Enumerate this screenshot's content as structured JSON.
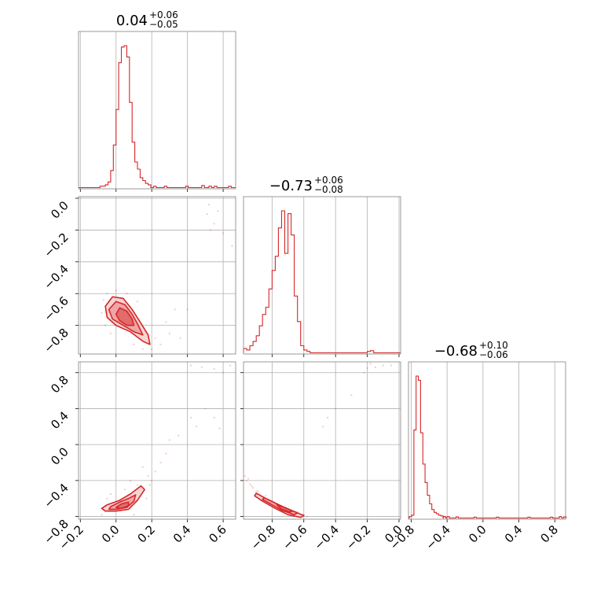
{
  "chart_data": {
    "type": "corner",
    "color": "#d62728",
    "titles": [
      {
        "value": "0.04",
        "plus": "+0.06",
        "minus": "−0.05"
      },
      {
        "value": "−0.73",
        "plus": "+0.06",
        "minus": "−0.08"
      },
      {
        "value": "−0.68",
        "plus": "+0.10",
        "minus": "−0.06"
      }
    ],
    "ranges": [
      [
        -0.21,
        0.67
      ],
      [
        -0.98,
        0.01
      ],
      [
        -0.83,
        0.92
      ]
    ],
    "tick_values": {
      "p0": [
        -0.2,
        0.0,
        0.2,
        0.4,
        0.6
      ],
      "p1": [
        -0.8,
        -0.6,
        -0.4,
        -0.2,
        0.0
      ],
      "p2": [
        -0.8,
        -0.4,
        0.0,
        0.4,
        0.8
      ]
    },
    "tick_labels": {
      "p0": [
        "−0.2",
        "0.0",
        "0.2",
        "0.4",
        "0.6"
      ],
      "p1": [
        "−0.8",
        "−0.6",
        "−0.4",
        "−0.2",
        "0.0"
      ],
      "p2": [
        "−0.8",
        "−0.4",
        "0.0",
        "0.4",
        "0.8"
      ]
    },
    "hist": [
      {
        "param": "p0",
        "bin_width": 0.015,
        "bins": [
          [
            -0.09,
            0.01
          ],
          [
            -0.075,
            0.01
          ],
          [
            -0.06,
            0.02
          ],
          [
            -0.045,
            0.04
          ],
          [
            -0.03,
            0.12
          ],
          [
            -0.015,
            0.3
          ],
          [
            0.0,
            0.55
          ],
          [
            0.015,
            0.88
          ],
          [
            0.03,
            0.99
          ],
          [
            0.045,
            1.0
          ],
          [
            0.06,
            0.92
          ],
          [
            0.075,
            0.6
          ],
          [
            0.09,
            0.32
          ],
          [
            0.105,
            0.18
          ],
          [
            0.12,
            0.13
          ],
          [
            0.135,
            0.07
          ],
          [
            0.15,
            0.05
          ],
          [
            0.165,
            0.03
          ],
          [
            0.18,
            0.02
          ],
          [
            0.21,
            0.01
          ],
          [
            0.27,
            0.01
          ],
          [
            0.39,
            0.01
          ],
          [
            0.48,
            0.015
          ],
          [
            0.52,
            0.01
          ],
          [
            0.55,
            0.01
          ],
          [
            0.63,
            0.01
          ]
        ]
      },
      {
        "param": "p1",
        "bin_width": 0.02,
        "bins": [
          [
            -0.98,
            0.03
          ],
          [
            -0.96,
            0.02
          ],
          [
            -0.94,
            0.05
          ],
          [
            -0.92,
            0.08
          ],
          [
            -0.9,
            0.12
          ],
          [
            -0.88,
            0.19
          ],
          [
            -0.86,
            0.27
          ],
          [
            -0.84,
            0.32
          ],
          [
            -0.82,
            0.45
          ],
          [
            -0.8,
            0.58
          ],
          [
            -0.78,
            0.68
          ],
          [
            -0.76,
            0.88
          ],
          [
            -0.74,
            1.0
          ],
          [
            -0.72,
            0.7
          ],
          [
            -0.7,
            0.98
          ],
          [
            -0.68,
            0.83
          ],
          [
            -0.66,
            0.4
          ],
          [
            -0.64,
            0.22
          ],
          [
            -0.62,
            0.05
          ],
          [
            -0.6,
            0.02
          ],
          [
            -0.58,
            0.01
          ],
          [
            -0.2,
            0.01
          ],
          [
            -0.18,
            0.015
          ]
        ]
      },
      {
        "param": "p2",
        "bin_width": 0.025,
        "bins": [
          [
            -0.82,
            0.01
          ],
          [
            -0.795,
            0.02
          ],
          [
            -0.77,
            0.62
          ],
          [
            -0.745,
            1.0
          ],
          [
            -0.72,
            0.97
          ],
          [
            -0.695,
            0.6
          ],
          [
            -0.67,
            0.38
          ],
          [
            -0.645,
            0.25
          ],
          [
            -0.62,
            0.16
          ],
          [
            -0.595,
            0.1
          ],
          [
            -0.57,
            0.06
          ],
          [
            -0.545,
            0.04
          ],
          [
            -0.52,
            0.03
          ],
          [
            -0.495,
            0.02
          ],
          [
            -0.47,
            0.015
          ],
          [
            -0.44,
            0.01
          ],
          [
            -0.4,
            0.01
          ],
          [
            -0.3,
            0.008
          ],
          [
            -0.1,
            0.006
          ],
          [
            0.15,
            0.006
          ],
          [
            0.5,
            0.006
          ],
          [
            0.75,
            0.006
          ],
          [
            0.85,
            0.01
          ],
          [
            0.9,
            0.008
          ]
        ]
      }
    ],
    "contours": {
      "p1_vs_p0": [
        [
          [
            -0.02,
            -0.62
          ],
          [
            0.04,
            -0.63
          ],
          [
            0.09,
            -0.7
          ],
          [
            0.13,
            -0.77
          ],
          [
            0.18,
            -0.86
          ],
          [
            0.19,
            -0.92
          ],
          [
            0.15,
            -0.9
          ],
          [
            0.08,
            -0.84
          ],
          [
            0.0,
            -0.8
          ],
          [
            -0.05,
            -0.75
          ],
          [
            -0.06,
            -0.68
          ]
        ],
        [
          [
            0.0,
            -0.65
          ],
          [
            0.05,
            -0.67
          ],
          [
            0.09,
            -0.73
          ],
          [
            0.12,
            -0.79
          ],
          [
            0.15,
            -0.86
          ],
          [
            0.1,
            -0.84
          ],
          [
            0.04,
            -0.8
          ],
          [
            -0.02,
            -0.76
          ],
          [
            -0.04,
            -0.7
          ]
        ],
        [
          [
            0.02,
            -0.69
          ],
          [
            0.06,
            -0.71
          ],
          [
            0.09,
            -0.76
          ],
          [
            0.1,
            -0.8
          ],
          [
            0.06,
            -0.8
          ],
          [
            0.02,
            -0.77
          ],
          [
            0.0,
            -0.73
          ]
        ]
      ],
      "p2_vs_p0": [
        [
          [
            -0.05,
            -0.67
          ],
          [
            0.02,
            -0.62
          ],
          [
            0.08,
            -0.55
          ],
          [
            0.14,
            -0.46
          ],
          [
            0.16,
            -0.5
          ],
          [
            0.12,
            -0.62
          ],
          [
            0.07,
            -0.72
          ],
          [
            0.0,
            -0.74
          ],
          [
            -0.06,
            -0.74
          ],
          [
            -0.08,
            -0.71
          ]
        ],
        [
          [
            -0.03,
            -0.69
          ],
          [
            0.02,
            -0.64
          ],
          [
            0.07,
            -0.6
          ],
          [
            0.11,
            -0.56
          ],
          [
            0.1,
            -0.63
          ],
          [
            0.06,
            -0.7
          ],
          [
            0.0,
            -0.72
          ],
          [
            -0.04,
            -0.72
          ]
        ],
        [
          [
            0.0,
            -0.7
          ],
          [
            0.03,
            -0.66
          ],
          [
            0.07,
            -0.64
          ],
          [
            0.07,
            -0.68
          ],
          [
            0.03,
            -0.71
          ]
        ]
      ],
      "p2_vs_p1": [
        [
          [
            -0.9,
            -0.54
          ],
          [
            -0.84,
            -0.6
          ],
          [
            -0.76,
            -0.67
          ],
          [
            -0.68,
            -0.73
          ],
          [
            -0.6,
            -0.79
          ],
          [
            -0.62,
            -0.81
          ],
          [
            -0.7,
            -0.78
          ],
          [
            -0.78,
            -0.71
          ],
          [
            -0.86,
            -0.63
          ],
          [
            -0.91,
            -0.57
          ]
        ],
        [
          [
            -0.85,
            -0.59
          ],
          [
            -0.78,
            -0.65
          ],
          [
            -0.71,
            -0.71
          ],
          [
            -0.64,
            -0.76
          ],
          [
            -0.66,
            -0.78
          ],
          [
            -0.74,
            -0.73
          ],
          [
            -0.81,
            -0.66
          ],
          [
            -0.86,
            -0.61
          ]
        ],
        [
          [
            -0.77,
            -0.67
          ],
          [
            -0.72,
            -0.7
          ],
          [
            -0.67,
            -0.74
          ],
          [
            -0.69,
            -0.75
          ],
          [
            -0.74,
            -0.72
          ]
        ]
      ]
    },
    "samples": {
      "p1_vs_p0": [
        [
          0.51,
          -0.1
        ],
        [
          0.53,
          -0.2
        ],
        [
          0.55,
          -0.16
        ],
        [
          0.57,
          -0.08
        ],
        [
          0.52,
          -0.04
        ],
        [
          0.6,
          -0.22
        ],
        [
          0.65,
          -0.3
        ],
        [
          0.4,
          -0.7
        ],
        [
          0.3,
          -0.85
        ],
        [
          0.25,
          -0.92
        ],
        [
          0.28,
          -0.78
        ],
        [
          0.33,
          -0.7
        ],
        [
          0.36,
          -0.88
        ],
        [
          -0.05,
          -0.6
        ],
        [
          -0.08,
          -0.72
        ],
        [
          -0.06,
          -0.8
        ],
        [
          0.1,
          -0.92
        ],
        [
          0.2,
          -0.95
        ],
        [
          0.15,
          -0.95
        ],
        [
          0.0,
          -0.58
        ],
        [
          0.06,
          -0.6
        ],
        [
          -0.03,
          -0.85
        ],
        [
          0.22,
          -0.88
        ],
        [
          0.12,
          -0.65
        ],
        [
          -0.07,
          -0.64
        ]
      ],
      "p2_vs_p0": [
        [
          0.42,
          0.88
        ],
        [
          0.48,
          0.86
        ],
        [
          0.55,
          0.84
        ],
        [
          0.6,
          0.8
        ],
        [
          0.64,
          0.88
        ],
        [
          0.5,
          0.4
        ],
        [
          0.55,
          0.3
        ],
        [
          0.58,
          0.18
        ],
        [
          0.45,
          0.2
        ],
        [
          0.35,
          0.1
        ],
        [
          0.3,
          0.05
        ],
        [
          0.42,
          0.3
        ],
        [
          0.2,
          -0.4
        ],
        [
          0.22,
          -0.3
        ],
        [
          0.18,
          -0.35
        ],
        [
          0.25,
          -0.2
        ],
        [
          0.15,
          -0.25
        ],
        [
          0.28,
          -0.1
        ],
        [
          -0.05,
          -0.6
        ],
        [
          -0.08,
          -0.78
        ],
        [
          0.12,
          -0.45
        ],
        [
          0.05,
          -0.5
        ],
        [
          -0.03,
          -0.55
        ],
        [
          0.1,
          -0.78
        ],
        [
          0.17,
          -0.6
        ],
        [
          0.08,
          -0.4
        ],
        [
          0.02,
          -0.72
        ],
        [
          -0.06,
          -0.68
        ],
        [
          0.13,
          -0.52
        ],
        [
          0.19,
          -0.45
        ]
      ],
      "p2_vs_p1": [
        [
          -0.18,
          0.9
        ],
        [
          -0.2,
          0.85
        ],
        [
          -0.15,
          0.86
        ],
        [
          -0.1,
          0.88
        ],
        [
          -0.05,
          0.88
        ],
        [
          -0.22,
          0.8
        ],
        [
          -0.3,
          0.55
        ],
        [
          -0.4,
          0.4
        ],
        [
          -0.45,
          0.3
        ],
        [
          -0.48,
          0.2
        ],
        [
          -0.97,
          -0.35
        ],
        [
          -0.96,
          -0.4
        ],
        [
          -0.94,
          -0.44
        ],
        [
          -0.92,
          -0.48
        ],
        [
          -0.9,
          -0.52
        ],
        [
          -0.88,
          -0.55
        ],
        [
          -0.86,
          -0.58
        ],
        [
          -0.82,
          -0.61
        ],
        [
          -0.8,
          -0.63
        ],
        [
          -0.74,
          -0.68
        ],
        [
          -0.7,
          -0.72
        ],
        [
          -0.64,
          -0.75
        ],
        [
          -0.6,
          -0.78
        ],
        [
          -0.58,
          -0.8
        ],
        [
          -0.95,
          -0.38
        ],
        [
          -0.93,
          -0.46
        ],
        [
          -0.89,
          -0.52
        ],
        [
          -0.84,
          -0.57
        ]
      ]
    }
  }
}
